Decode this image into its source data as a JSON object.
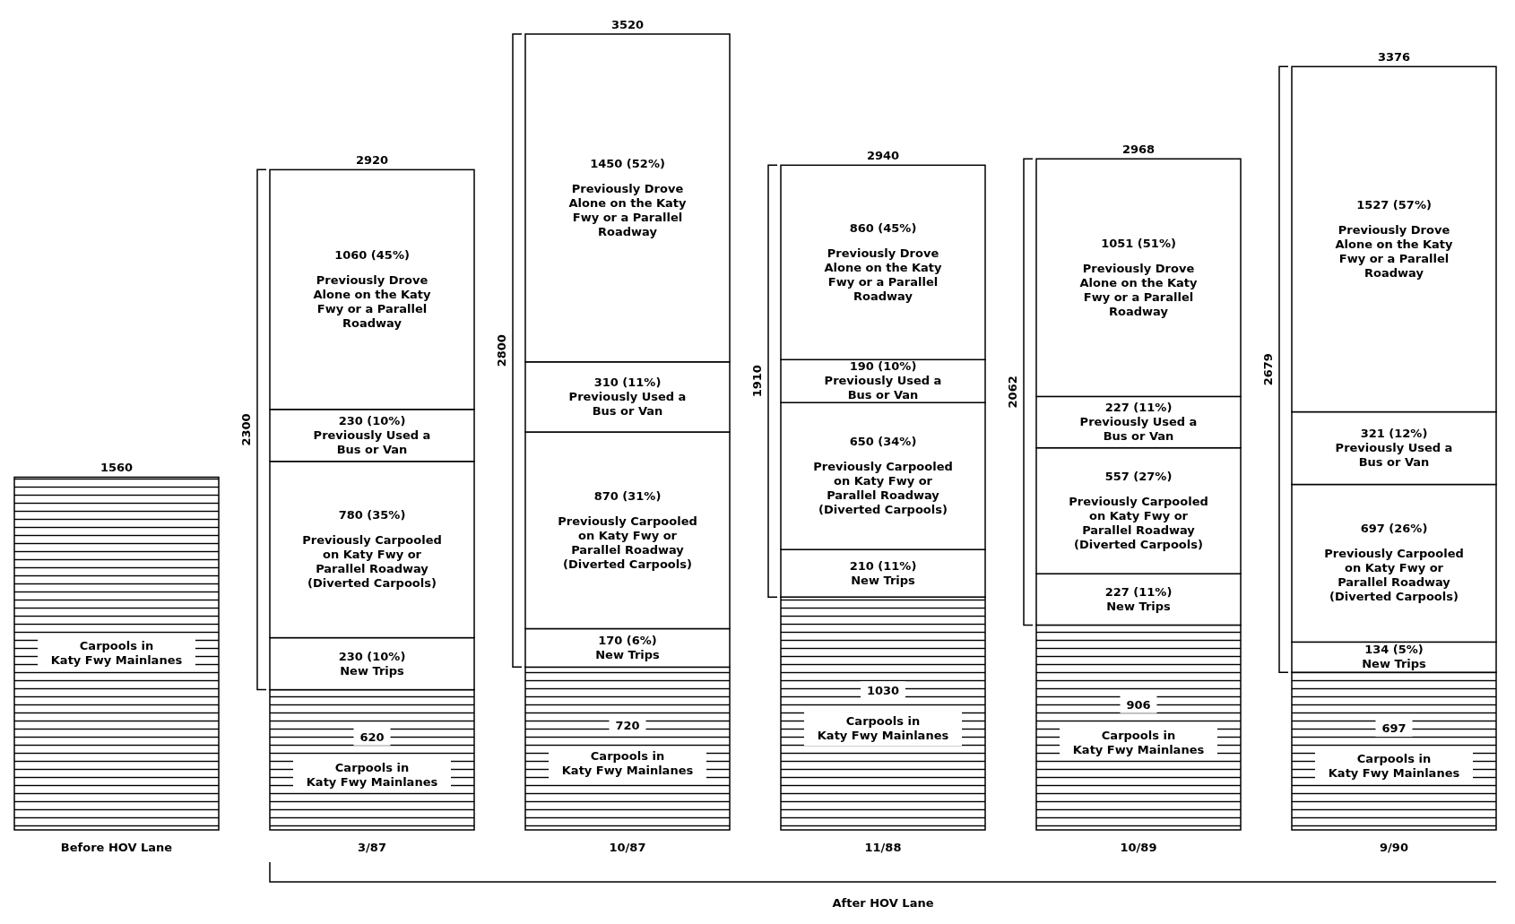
{
  "chart_data": {
    "type": "bar",
    "stacked": true,
    "categories": [
      "Before HOV Lane",
      "3/87",
      "10/87",
      "11/88",
      "10/89",
      "9/90"
    ],
    "series": [
      {
        "name": "Carpools in\nKaty Fwy Mainlanes",
        "color": "#000000",
        "values": [
          1560,
          620,
          720,
          1030,
          906,
          697
        ],
        "value_labels": [
          null,
          "620",
          "720",
          "1030",
          "906",
          "697"
        ]
      },
      {
        "name": "New Trips",
        "color": "#ffffff",
        "values": [
          null,
          230,
          170,
          210,
          227,
          134
        ],
        "value_labels": [
          null,
          "230 (10%)",
          "170 (6%)",
          "210 (11%)",
          "227 (11%)",
          "134 (5%)"
        ]
      },
      {
        "name": "Previously Carpooled\non Katy Fwy or\nParallel Roadway\n(Diverted Carpools)",
        "color": "#ffffff",
        "values": [
          null,
          780,
          870,
          650,
          557,
          697
        ],
        "value_labels": [
          null,
          "780 (35%)",
          "870 (31%)",
          "650 (34%)",
          "557 (27%)",
          "697 (26%)"
        ]
      },
      {
        "name": "Previously Used a\nBus or Van",
        "color": "#ffffff",
        "values": [
          null,
          230,
          310,
          190,
          227,
          321
        ],
        "value_labels": [
          null,
          "230 (10%)",
          "310 (11%)",
          "190 (10%)",
          "227 (11%)",
          "321 (12%)"
        ]
      },
      {
        "name": "Previously Drove\nAlone on the Katy\nFwy or a Parallel\nRoadway",
        "color": "#ffffff",
        "values": [
          null,
          1060,
          1450,
          860,
          1051,
          1527
        ],
        "value_labels": [
          null,
          "1060 (45%)",
          "1450 (52%)",
          "860 (45%)",
          "1051 (51%)",
          "1527 (57%)"
        ]
      }
    ],
    "totals": [
      "1560",
      "2920",
      "3520",
      "2940",
      "2968",
      "3376"
    ],
    "annotations": [
      "2300",
      "2800",
      "1910",
      "2062",
      "2679",
      "After HOV Lane"
    ]
  }
}
